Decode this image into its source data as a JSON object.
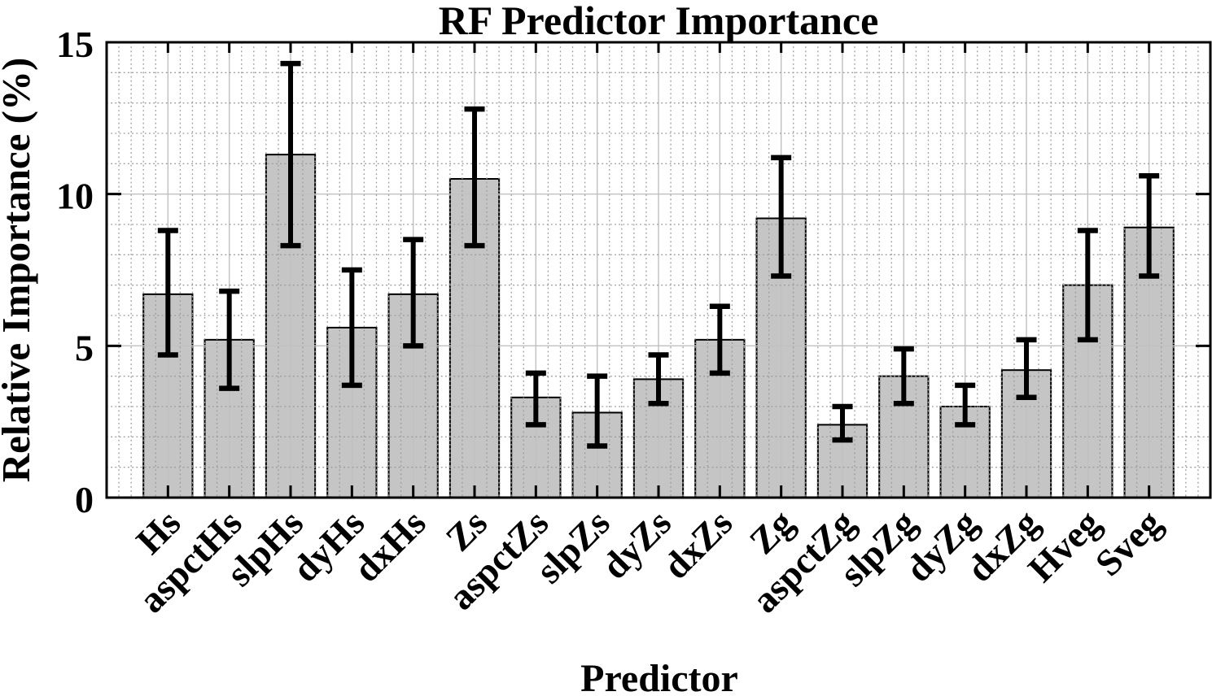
{
  "chart_data": {
    "type": "bar",
    "title": "RF Predictor Importance",
    "xlabel": "Predictor",
    "ylabel": "Relative Importance (%)",
    "ylim": [
      0,
      15
    ],
    "yticks": [
      0,
      5,
      10,
      15
    ],
    "xlim_units": 18,
    "grid": {
      "major": "solid",
      "minor": "dotted",
      "layer": "top"
    },
    "legend": "none",
    "categories": [
      "Hs",
      "aspctHs",
      "slpHs",
      "dyHs",
      "dxHs",
      "Zs",
      "aspctZs",
      "slpZs",
      "dyZs",
      "dxZs",
      "Zg",
      "aspctZg",
      "slpZg",
      "dyZg",
      "dxZg",
      "Hveg",
      "Sveg"
    ],
    "values": [
      6.7,
      5.2,
      11.3,
      5.6,
      6.7,
      10.5,
      3.3,
      2.8,
      3.9,
      5.2,
      9.2,
      2.4,
      4.0,
      3.0,
      4.2,
      7.0,
      8.9
    ],
    "error_high": [
      8.8,
      6.8,
      14.3,
      7.5,
      8.5,
      12.8,
      4.1,
      4.0,
      4.7,
      6.3,
      11.2,
      3.0,
      4.9,
      3.7,
      5.2,
      8.8,
      10.6
    ],
    "error_low": [
      4.7,
      3.6,
      8.3,
      3.7,
      5.0,
      8.3,
      2.4,
      1.7,
      3.1,
      4.1,
      7.3,
      1.9,
      3.1,
      2.4,
      3.3,
      5.2,
      7.3
    ],
    "error_bars": "whisker absolute endpoints in %"
  },
  "style": {
    "bar_fill": "#c5c5c5",
    "bar_edge": "#000000",
    "error_color": "#000000",
    "grid_major_color": "#c0c0c0",
    "grid_minor_color": "#9a9a9a",
    "frame_color": "#000000",
    "background": "#ffffff",
    "text_color": "#000000"
  }
}
